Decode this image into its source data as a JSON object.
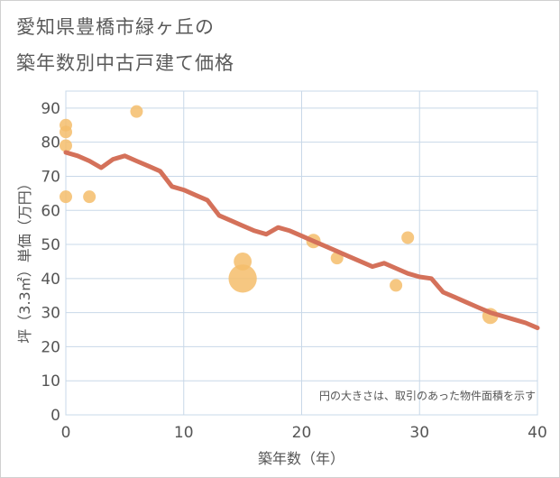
{
  "title_line1": "愛知県豊橋市緑ヶ丘の",
  "title_line2": "築年数別中古戸建て価格",
  "chart_data": {
    "type": "scatter",
    "title": "愛知県豊橋市緑ヶ丘の築年数別中古戸建て価格",
    "xlabel": "築年数（年）",
    "ylabel": "坪（3.3㎡）単価（万円）",
    "xlim": [
      0,
      40
    ],
    "ylim": [
      0,
      95
    ],
    "xticks": [
      0,
      10,
      20,
      30,
      40
    ],
    "yticks": [
      0,
      10,
      20,
      30,
      40,
      50,
      60,
      70,
      80,
      90
    ],
    "grid": true,
    "annotation": "円の大きさは、取引のあった物件面積を示す",
    "colors": {
      "points": "#f5bd6b",
      "trend": "#d4715a",
      "grid": "#c8d8e8"
    },
    "points": [
      {
        "x": 0,
        "y": 85,
        "size": 1
      },
      {
        "x": 0,
        "y": 83,
        "size": 1
      },
      {
        "x": 0,
        "y": 79,
        "size": 1
      },
      {
        "x": 0,
        "y": 64,
        "size": 1
      },
      {
        "x": 2,
        "y": 64,
        "size": 1
      },
      {
        "x": 6,
        "y": 89,
        "size": 1
      },
      {
        "x": 15,
        "y": 40,
        "size": 5
      },
      {
        "x": 15,
        "y": 45,
        "size": 2
      },
      {
        "x": 21,
        "y": 51,
        "size": 1.3
      },
      {
        "x": 23,
        "y": 46,
        "size": 1
      },
      {
        "x": 28,
        "y": 38,
        "size": 1
      },
      {
        "x": 29,
        "y": 52,
        "size": 1
      },
      {
        "x": 36,
        "y": 29,
        "size": 1.6
      }
    ],
    "trend": {
      "x": [
        0,
        1,
        2,
        3,
        4,
        5,
        6,
        7,
        8,
        9,
        10,
        11,
        12,
        13,
        14,
        15,
        16,
        17,
        18,
        19,
        20,
        21,
        22,
        23,
        24,
        25,
        26,
        27,
        28,
        29,
        30,
        31,
        32,
        33,
        34,
        35,
        36,
        37,
        38,
        39,
        40
      ],
      "y": [
        77,
        76,
        74.5,
        72.5,
        75,
        76,
        74.5,
        73,
        71.5,
        67,
        66,
        64.5,
        63,
        58.5,
        57,
        55.5,
        54,
        53,
        55,
        54,
        52.5,
        51,
        49.5,
        48,
        46.5,
        45,
        43.5,
        44.5,
        43,
        41.5,
        40.5,
        40,
        36,
        34.5,
        33,
        31.5,
        30,
        29,
        28,
        27,
        25.5
      ]
    }
  }
}
